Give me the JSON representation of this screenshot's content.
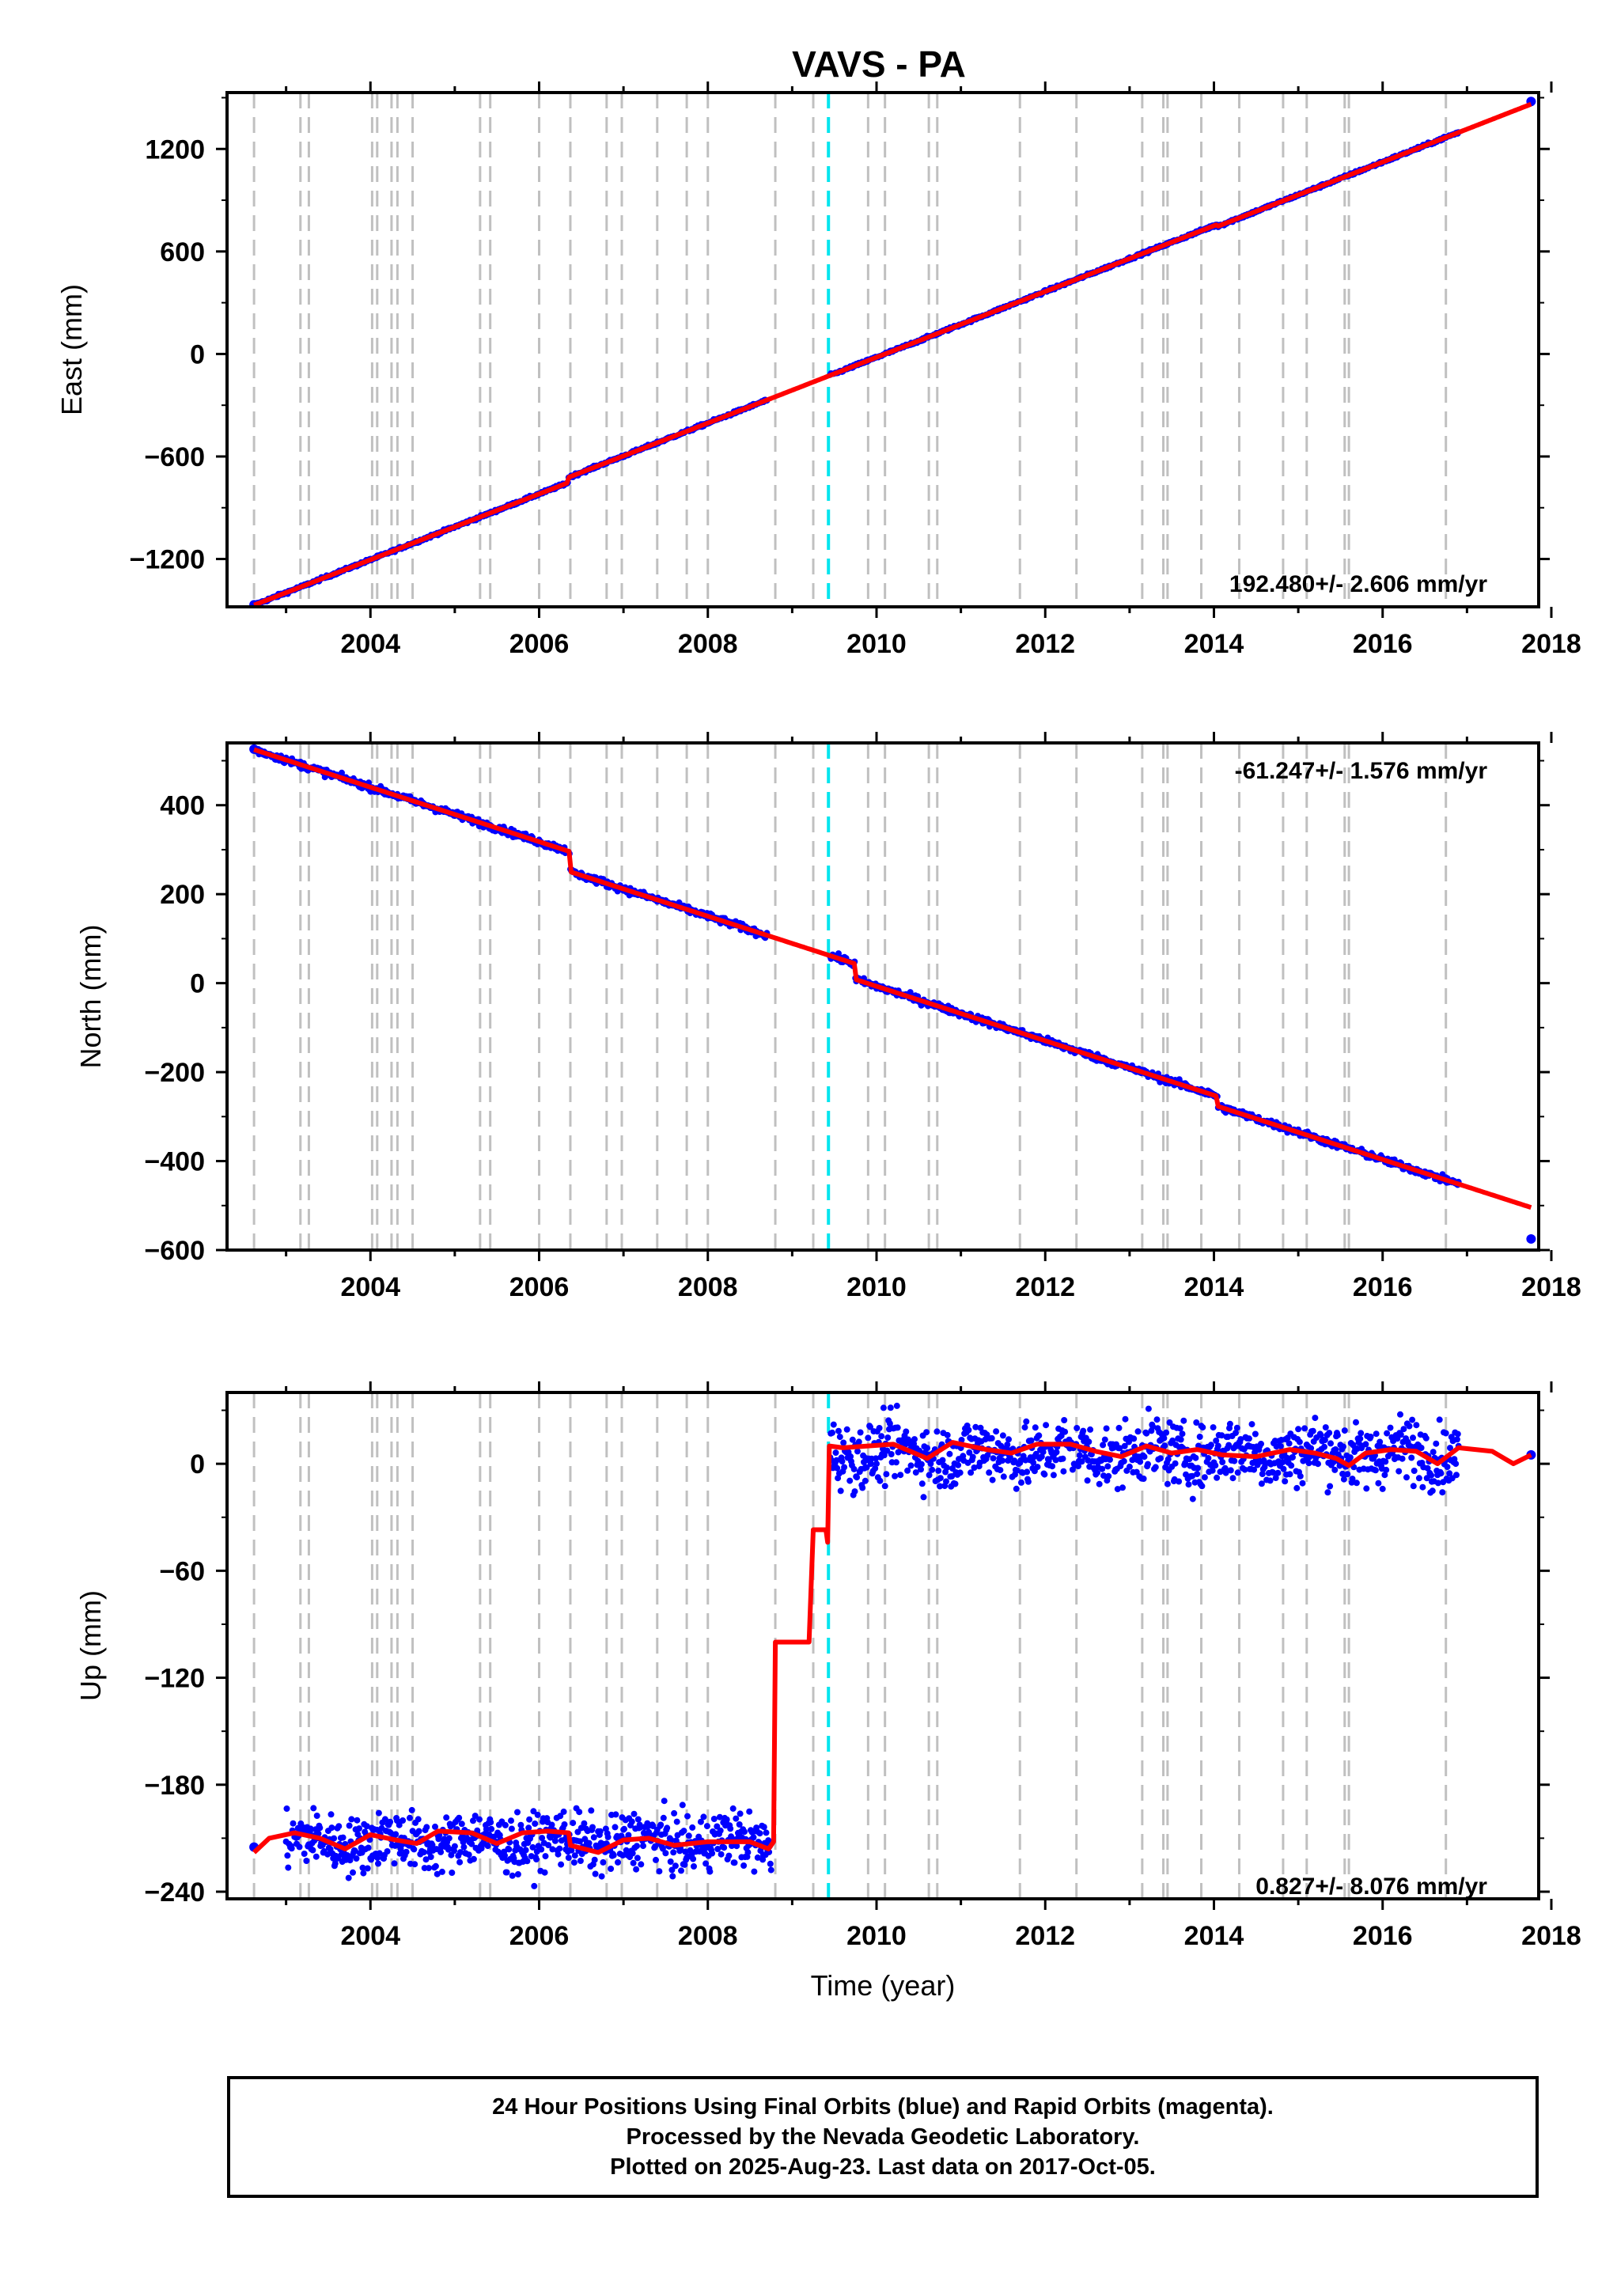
{
  "title": "VAVS - PA",
  "footer": {
    "line1": "24 Hour Positions Using Final Orbits (blue) and Rapid Orbits (magenta).",
    "line2": "Processed by the Nevada Geodetic Laboratory.",
    "line3": "Plotted on 2025-Aug-23. Last data on 2017-Oct-05."
  },
  "colors": {
    "data": "#0000ff",
    "model": "#ff0000",
    "steps": "#c0c0c0",
    "highlight": "#00e5ee"
  },
  "chart_data": [
    {
      "type": "scatter",
      "panel": "east",
      "title": "VAVS - PA",
      "xlabel": "",
      "ylabel": "East (mm)",
      "xlim": [
        2002.3,
        2017.85
      ],
      "ylim": [
        -1480,
        1530
      ],
      "xticks": [
        2004,
        2006,
        2008,
        2010,
        2012,
        2014,
        2016,
        2018
      ],
      "yticks": [
        -1200,
        -600,
        0,
        600,
        1200
      ],
      "rate_label": "192.480+/- 2.606 mm/yr",
      "grid": false,
      "step_lines": [
        2002.62,
        2003.17,
        2003.27,
        2004.02,
        2004.08,
        2004.25,
        2004.32,
        2004.5,
        2005.3,
        2005.42,
        2006.0,
        2006.37,
        2006.8,
        2006.98,
        2007.4,
        2007.75,
        2008.0,
        2008.8,
        2009.25,
        2009.9,
        2010.1,
        2010.62,
        2010.72,
        2011.7,
        2012.37,
        2013.15,
        2013.4,
        2013.45,
        2013.85,
        2014.3,
        2014.82,
        2015.1,
        2015.55,
        2015.6,
        2016.75
      ],
      "highlight_line": 2009.43,
      "data_segments": [
        {
          "start": 2002.62,
          "end": 2008.7,
          "offsets": [
            [
              2006.35,
              30
            ]
          ],
          "noise": 4,
          "density": 100
        },
        {
          "start": 2009.45,
          "end": 2016.9,
          "offsets": [
            [
              2014.05,
              -12
            ]
          ],
          "noise": 4,
          "density": 100
        }
      ],
      "model": {
        "t0": 2002.62,
        "y0": -1470,
        "rate": 192.48,
        "offsets": [
          [
            2006.35,
            30
          ],
          [
            2014.05,
            -12
          ]
        ],
        "t_end": 2017.76
      },
      "isolated_points": [
        [
          2002.62,
          -1468
        ],
        [
          2017.76,
          1478
        ]
      ]
    },
    {
      "type": "scatter",
      "panel": "north",
      "xlabel": "",
      "ylabel": "North (mm)",
      "xlim": [
        2002.3,
        2017.85
      ],
      "ylim": [
        -600,
        540
      ],
      "xticks": [
        2004,
        2006,
        2008,
        2010,
        2012,
        2014,
        2016,
        2018
      ],
      "yticks": [
        -600,
        -400,
        -200,
        0,
        200,
        400
      ],
      "rate_label": "-61.247+/- 1.576 mm/yr",
      "grid": false,
      "step_lines": [
        2002.62,
        2003.17,
        2003.27,
        2004.02,
        2004.08,
        2004.25,
        2004.32,
        2004.5,
        2005.3,
        2005.42,
        2006.0,
        2006.37,
        2006.8,
        2006.98,
        2007.4,
        2007.75,
        2008.0,
        2008.8,
        2009.25,
        2009.9,
        2010.1,
        2010.62,
        2010.72,
        2011.7,
        2012.37,
        2013.15,
        2013.4,
        2013.45,
        2013.85,
        2014.3,
        2014.82,
        2015.1,
        2015.55,
        2015.6,
        2016.75
      ],
      "highlight_line": 2009.43,
      "data_segments": [
        {
          "start": 2002.62,
          "end": 2008.7,
          "offsets": [
            [
              2006.37,
              -45
            ]
          ],
          "noise": 4,
          "density": 100
        },
        {
          "start": 2009.45,
          "end": 2016.9,
          "offsets": [
            [
              2009.75,
              -35
            ],
            [
              2014.05,
              -22
            ]
          ],
          "noise": 4,
          "density": 100
        }
      ],
      "model": {
        "t0": 2002.62,
        "y0": 525,
        "rate": -61.247,
        "offsets": [
          [
            2006.37,
            -45
          ],
          [
            2009.75,
            -35
          ],
          [
            2014.05,
            -22
          ]
        ],
        "t_end": 2017.76
      },
      "isolated_points": [
        [
          2002.62,
          526
        ],
        [
          2017.76,
          -575
        ]
      ]
    },
    {
      "type": "scatter",
      "panel": "up",
      "xlabel": "Time (year)",
      "ylabel": "Up (mm)",
      "xlim": [
        2002.3,
        2017.85
      ],
      "ylim": [
        -244,
        40
      ],
      "xticks": [
        2004,
        2006,
        2008,
        2010,
        2012,
        2014,
        2016,
        2018
      ],
      "yticks": [
        -240,
        -180,
        -120,
        -60,
        0
      ],
      "rate_label": "0.827+/- 8.076 mm/yr",
      "grid": false,
      "step_lines": [
        2002.62,
        2003.17,
        2003.27,
        2004.02,
        2004.08,
        2004.25,
        2004.32,
        2004.5,
        2005.3,
        2005.42,
        2006.0,
        2006.37,
        2006.8,
        2006.98,
        2007.4,
        2007.75,
        2008.0,
        2008.8,
        2009.25,
        2009.9,
        2010.1,
        2010.62,
        2010.72,
        2011.7,
        2012.37,
        2013.15,
        2013.4,
        2013.45,
        2013.85,
        2014.3,
        2014.82,
        2015.1,
        2015.55,
        2015.6,
        2016.75
      ],
      "highlight_line": 2009.43,
      "data_segments": [
        {
          "start": 2003.0,
          "end": 2008.75,
          "level": -212,
          "noise": 8,
          "density": 120
        },
        {
          "start": 2009.45,
          "end": 2016.9,
          "level": 6,
          "noise": 9,
          "density": 120
        }
      ],
      "model_steps": [
        [
          2002.62,
          -218
        ],
        [
          2002.8,
          -210
        ],
        [
          2003.1,
          -207
        ],
        [
          2003.4,
          -210
        ],
        [
          2003.7,
          -216
        ],
        [
          2004.0,
          -208
        ],
        [
          2004.3,
          -211
        ],
        [
          2004.55,
          -213
        ],
        [
          2004.8,
          -206
        ],
        [
          2005.2,
          -207
        ],
        [
          2005.5,
          -213
        ],
        [
          2005.8,
          -207
        ],
        [
          2006.1,
          -206
        ],
        [
          2006.35,
          -207
        ],
        [
          2006.37,
          -214
        ],
        [
          2006.7,
          -218
        ],
        [
          2007.0,
          -211
        ],
        [
          2007.3,
          -210
        ],
        [
          2007.6,
          -214
        ],
        [
          2008.0,
          -212
        ],
        [
          2008.5,
          -212
        ],
        [
          2008.72,
          -216
        ],
        [
          2008.78,
          -212
        ],
        [
          2008.8,
          -100
        ],
        [
          2009.2,
          -100
        ],
        [
          2009.25,
          -37
        ],
        [
          2009.4,
          -37
        ],
        [
          2009.42,
          -44
        ],
        [
          2009.44,
          10
        ],
        [
          2009.6,
          9
        ],
        [
          2009.9,
          10
        ],
        [
          2010.2,
          11
        ],
        [
          2010.6,
          3
        ],
        [
          2010.9,
          12
        ],
        [
          2011.3,
          8
        ],
        [
          2011.6,
          6
        ],
        [
          2011.9,
          11
        ],
        [
          2012.3,
          11
        ],
        [
          2012.6,
          7
        ],
        [
          2012.9,
          4
        ],
        [
          2013.2,
          10
        ],
        [
          2013.5,
          6
        ],
        [
          2013.8,
          8
        ],
        [
          2014.1,
          5
        ],
        [
          2014.5,
          4
        ],
        [
          2014.9,
          8
        ],
        [
          2015.2,
          6
        ],
        [
          2015.45,
          3
        ],
        [
          2015.6,
          -1
        ],
        [
          2015.8,
          6
        ],
        [
          2016.1,
          8
        ],
        [
          2016.4,
          7
        ],
        [
          2016.65,
          0
        ],
        [
          2016.9,
          9
        ],
        [
          2017.3,
          7
        ],
        [
          2017.55,
          0
        ],
        [
          2017.76,
          5
        ]
      ],
      "isolated_points": [
        [
          2002.62,
          -215
        ],
        [
          2017.76,
          5
        ]
      ]
    }
  ]
}
